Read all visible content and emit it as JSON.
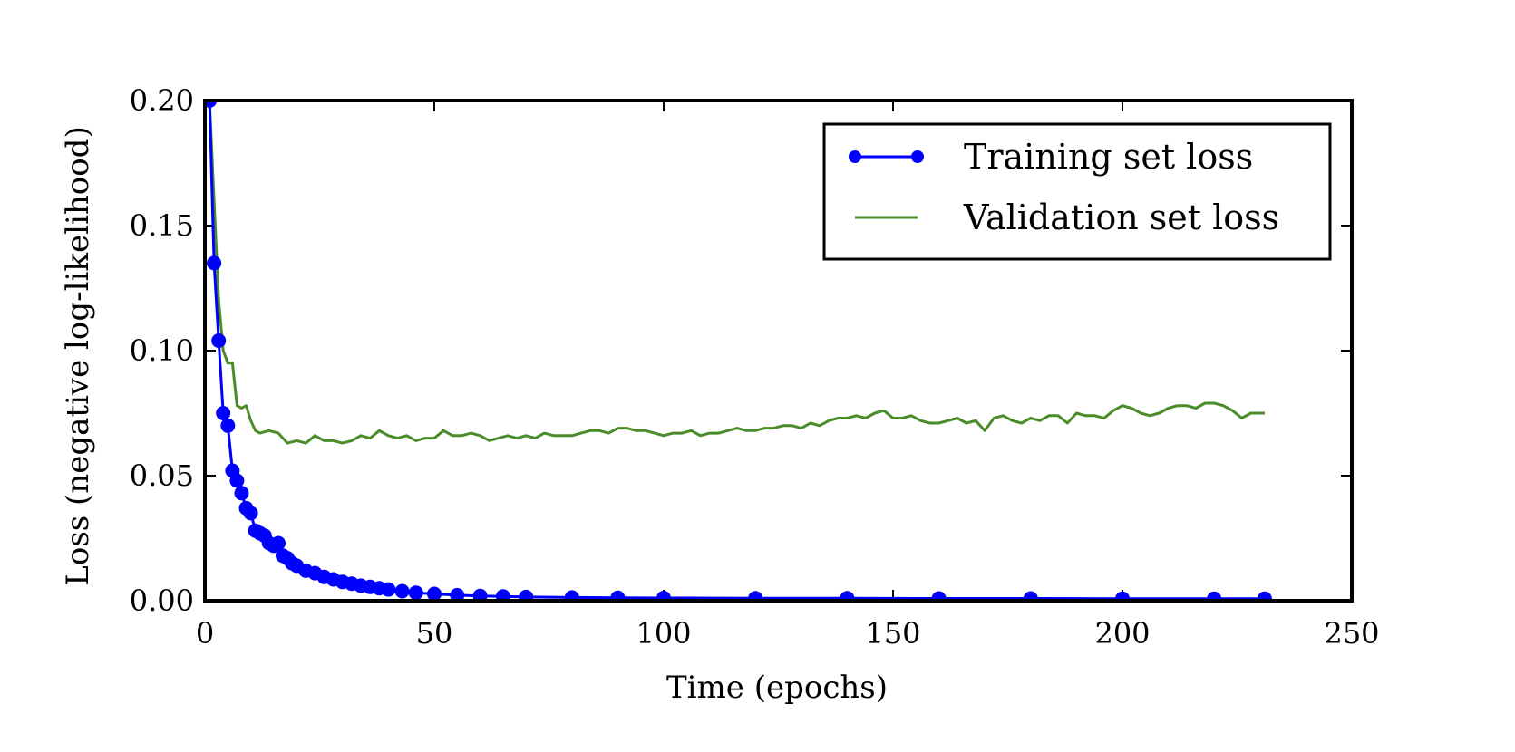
{
  "chart_data": {
    "type": "line",
    "title": "",
    "xlabel": "Time (epochs)",
    "ylabel": "Loss (negative log-likelihood)",
    "xlim": [
      0,
      250
    ],
    "ylim": [
      0,
      0.2
    ],
    "xticks": [
      0,
      50,
      100,
      150,
      200,
      250
    ],
    "xtick_labels": [
      "0",
      "50",
      "100",
      "150",
      "200",
      "250"
    ],
    "yticks": [
      0,
      0.05,
      0.1,
      0.15,
      0.2
    ],
    "ytick_labels": [
      "0.00",
      "0.05",
      "0.10",
      "0.15",
      "0.20"
    ],
    "grid": false,
    "legend_position": "top-right",
    "series": [
      {
        "name": "Training set loss",
        "color": "#0000ff",
        "marker": "circle",
        "x": [
          1,
          2,
          3,
          4,
          5,
          6,
          7,
          8,
          9,
          10,
          11,
          12,
          13,
          14,
          15,
          16,
          17,
          18,
          19,
          20,
          22,
          24,
          26,
          28,
          30,
          32,
          34,
          36,
          38,
          40,
          43,
          46,
          50,
          55,
          60,
          65,
          70,
          80,
          90,
          100,
          120,
          140,
          160,
          180,
          200,
          220,
          231
        ],
        "y": [
          0.2,
          0.135,
          0.104,
          0.075,
          0.07,
          0.052,
          0.048,
          0.043,
          0.037,
          0.035,
          0.028,
          0.027,
          0.026,
          0.023,
          0.022,
          0.023,
          0.018,
          0.017,
          0.015,
          0.014,
          0.012,
          0.011,
          0.0095,
          0.0085,
          0.0075,
          0.0068,
          0.006,
          0.0055,
          0.005,
          0.0045,
          0.0038,
          0.0032,
          0.0027,
          0.0022,
          0.0019,
          0.0017,
          0.0015,
          0.0013,
          0.0012,
          0.0011,
          0.001,
          0.001,
          0.0009,
          0.0009,
          0.0008,
          0.0008,
          0.0008
        ]
      },
      {
        "name": "Validation set loss",
        "color": "#4a8c2a",
        "marker": "none",
        "x": [
          1,
          2,
          3,
          4,
          5,
          6,
          7,
          8,
          9,
          10,
          11,
          12,
          14,
          16,
          18,
          20,
          22,
          24,
          26,
          28,
          30,
          32,
          34,
          36,
          38,
          40,
          42,
          44,
          46,
          48,
          50,
          52,
          54,
          56,
          58,
          60,
          62,
          64,
          66,
          68,
          70,
          72,
          74,
          76,
          78,
          80,
          82,
          84,
          86,
          88,
          90,
          92,
          94,
          96,
          98,
          100,
          102,
          104,
          106,
          108,
          110,
          112,
          114,
          116,
          118,
          120,
          122,
          124,
          126,
          128,
          130,
          132,
          134,
          136,
          138,
          140,
          142,
          144,
          146,
          148,
          150,
          152,
          154,
          156,
          158,
          160,
          162,
          164,
          166,
          168,
          170,
          172,
          174,
          176,
          178,
          180,
          182,
          184,
          186,
          188,
          190,
          192,
          194,
          196,
          198,
          200,
          202,
          204,
          206,
          208,
          210,
          212,
          214,
          216,
          218,
          220,
          222,
          224,
          226,
          228,
          230,
          231
        ],
        "y": [
          0.2,
          0.16,
          0.12,
          0.1,
          0.095,
          0.095,
          0.078,
          0.077,
          0.078,
          0.072,
          0.068,
          0.067,
          0.068,
          0.067,
          0.063,
          0.064,
          0.063,
          0.066,
          0.064,
          0.064,
          0.063,
          0.064,
          0.066,
          0.065,
          0.068,
          0.066,
          0.065,
          0.066,
          0.064,
          0.065,
          0.065,
          0.068,
          0.066,
          0.066,
          0.067,
          0.066,
          0.064,
          0.065,
          0.066,
          0.065,
          0.066,
          0.065,
          0.067,
          0.066,
          0.066,
          0.066,
          0.067,
          0.068,
          0.068,
          0.067,
          0.069,
          0.069,
          0.068,
          0.068,
          0.067,
          0.066,
          0.067,
          0.067,
          0.068,
          0.066,
          0.067,
          0.067,
          0.068,
          0.069,
          0.068,
          0.068,
          0.069,
          0.069,
          0.07,
          0.07,
          0.069,
          0.071,
          0.07,
          0.072,
          0.073,
          0.073,
          0.074,
          0.073,
          0.075,
          0.076,
          0.073,
          0.073,
          0.074,
          0.072,
          0.071,
          0.071,
          0.072,
          0.073,
          0.071,
          0.072,
          0.068,
          0.073,
          0.074,
          0.072,
          0.071,
          0.073,
          0.072,
          0.074,
          0.074,
          0.071,
          0.075,
          0.074,
          0.074,
          0.073,
          0.076,
          0.078,
          0.077,
          0.075,
          0.074,
          0.075,
          0.077,
          0.078,
          0.078,
          0.077,
          0.079,
          0.079,
          0.078,
          0.076,
          0.073,
          0.075,
          0.075,
          0.075
        ]
      }
    ]
  }
}
